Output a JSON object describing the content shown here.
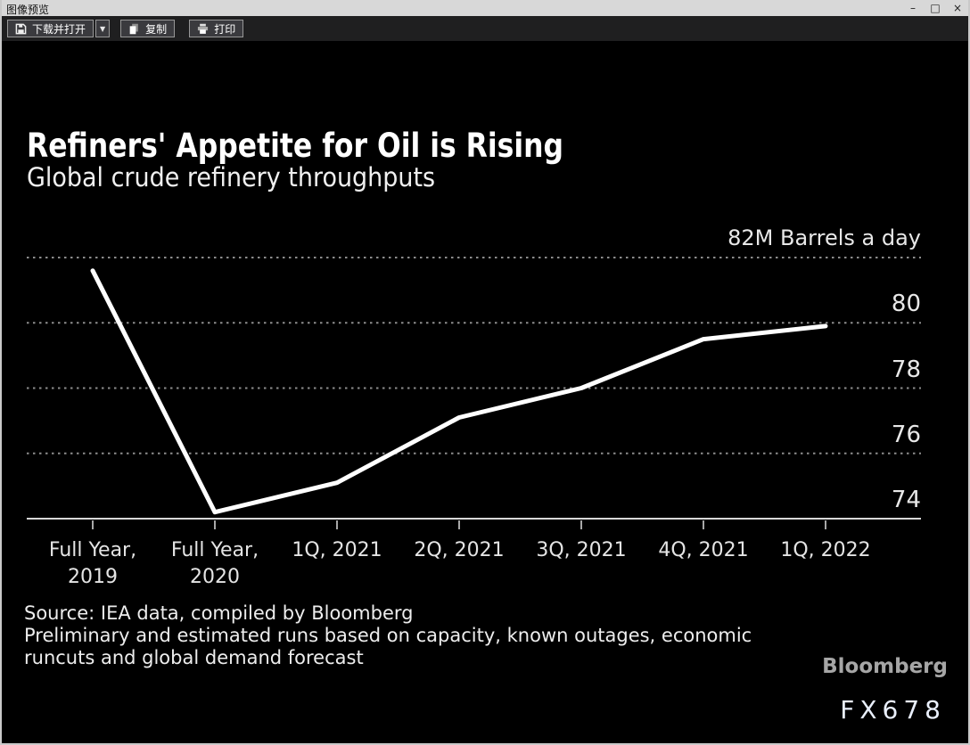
{
  "window": {
    "title": "图像预览",
    "controls": {
      "minimize": "–",
      "maximize": "□",
      "close": "×"
    }
  },
  "toolbar": {
    "download_open": "下载并打开",
    "dropdown_arrow": "▼",
    "copy": "复制",
    "print": "打印"
  },
  "chart_data": {
    "type": "line",
    "title": "Refiners' Appetite for Oil is Rising",
    "subtitle": "Global crude refinery throughputs",
    "unit_label": "82M Barrels a day",
    "categories": [
      "Full Year, 2019",
      "Full Year, 2020",
      "1Q, 2021",
      "2Q, 2021",
      "3Q, 2021",
      "4Q, 2021",
      "1Q, 2022"
    ],
    "category_lines": [
      [
        "Full Year,",
        "2019"
      ],
      [
        "Full Year,",
        "2020"
      ],
      [
        "1Q, 2021"
      ],
      [
        "2Q, 2021"
      ],
      [
        "3Q, 2021"
      ],
      [
        "4Q, 2021"
      ],
      [
        "1Q, 2022"
      ]
    ],
    "values": [
      81.6,
      74.2,
      75.1,
      77.1,
      78.0,
      79.5,
      79.9
    ],
    "y_axis": [
      {
        "value": 82,
        "label": "82M Barrels a day"
      },
      {
        "value": 80,
        "label": "80"
      },
      {
        "value": 78,
        "label": "78"
      },
      {
        "value": 76,
        "label": "76"
      },
      {
        "value": 74,
        "label": "74"
      }
    ],
    "ylim": [
      74,
      82
    ],
    "grid": "horizontal-dashed",
    "legend": "none",
    "line_color": "#ffffff",
    "background_color": "#000000"
  },
  "footer": {
    "source": "Source: IEA data, compiled by Bloomberg",
    "note_lines": [
      "Preliminary and estimated runs based on capacity, known outages, economic",
      "runcuts and global demand forecast"
    ],
    "brand": "Bloomberg",
    "watermark": "FX678"
  }
}
